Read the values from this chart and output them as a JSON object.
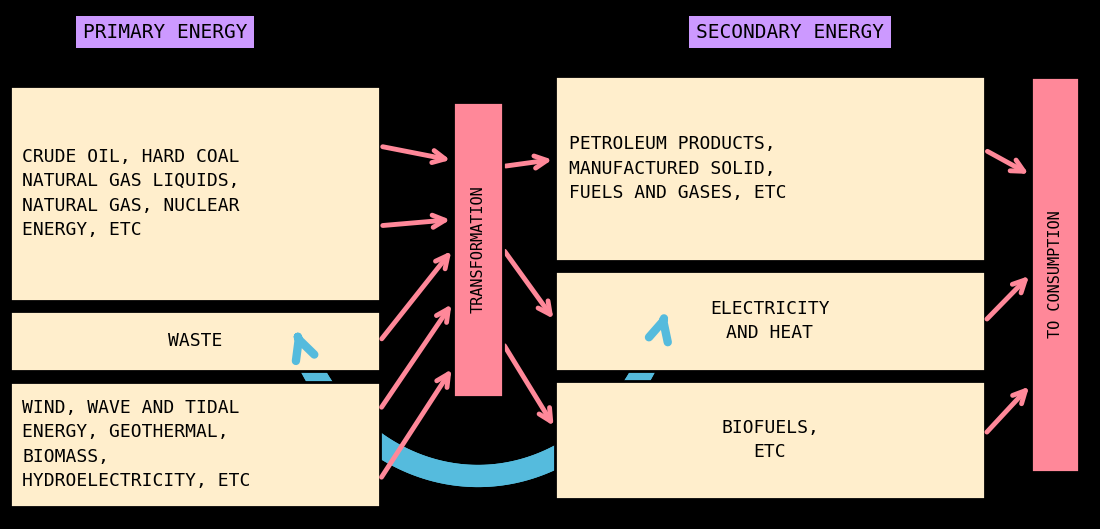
{
  "bg_color": "#000000",
  "primary_label_bg": "#cc99ff",
  "secondary_label_bg": "#cc99ff",
  "box_fill": "#ffeecc",
  "box_edge": "#000000",
  "transform_fill": "#ff8899",
  "consumption_fill": "#ff8899",
  "arrow_blue": "#55bbdd",
  "arrow_pink": "#ff8899",
  "primary_energy_label": "PRIMARY ENERGY",
  "secondary_energy_label": "SECONDARY ENERGY",
  "box1_text": "CRUDE OIL, HARD COAL\nNATURAL GAS LIQUIDS,\nNATURAL GAS, NUCLEAR\nENERGY, ETC",
  "box2_text": "WASTE",
  "box3_text": "WIND, WAVE AND TIDAL\nENERGY, GEOTHERMAL,\nBIOMASS,\nHYDROELECTRICITY, ETC",
  "box4_text": "PETROLEUM PRODUCTS,\nMANUFACTURED SOLID,\nFUELS AND GASES, ETC",
  "box5_text": "ELECTRICITY\nAND HEAT",
  "box6_text": "BIOFUELS,\nETC",
  "transform_text": "TRANSFORMATION",
  "consumption_text": "TO CONSUMPTION",
  "font_size_label": 14,
  "font_size_box": 13,
  "font_size_transform": 11
}
